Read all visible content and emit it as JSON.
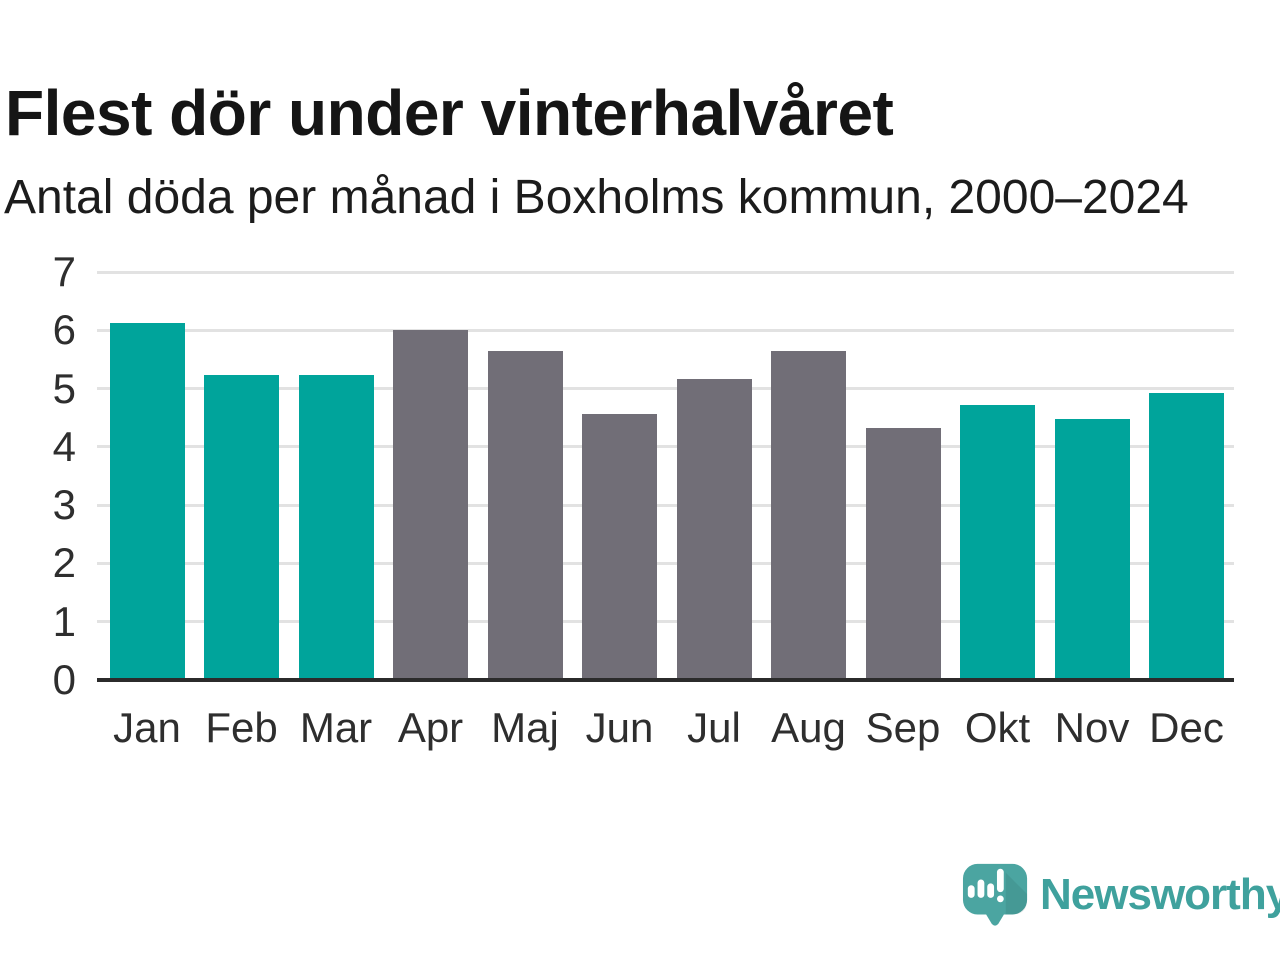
{
  "header": {
    "title": "Flest dör under vinterhalvåret",
    "subtitle": "Antal döda per månad i Boxholms kommun, 2000–2024"
  },
  "chart_data": {
    "type": "bar",
    "title": "Flest dör under vinterhalvåret",
    "subtitle": "Antal döda per månad i Boxholms kommun, 2000–2024",
    "categories": [
      "Jan",
      "Feb",
      "Mar",
      "Apr",
      "Maj",
      "Jun",
      "Jul",
      "Aug",
      "Sep",
      "Okt",
      "Nov",
      "Dec"
    ],
    "values": [
      6.12,
      5.24,
      5.24,
      6.0,
      5.64,
      4.56,
      5.16,
      5.64,
      4.32,
      4.72,
      4.48,
      4.92
    ],
    "highlighted": [
      true,
      true,
      true,
      false,
      false,
      false,
      false,
      false,
      false,
      true,
      true,
      true
    ],
    "xlabel": "",
    "ylabel": "",
    "ylim": [
      0,
      7
    ],
    "yticks": [
      0,
      1,
      2,
      3,
      4,
      5,
      6,
      7
    ],
    "grid": true,
    "legend": "none",
    "colors": {
      "highlight": "#00a49b",
      "muted": "#716e77",
      "gridline": "#e2e2e2",
      "axis": "#2b2b2b"
    }
  },
  "footer": {
    "brand": "Newsworthy",
    "logo_icon": "newsworthy-speech-bubble-bar-chart-icon",
    "logo_colors": {
      "bubble": "#4ba5a1",
      "text": "#3fa19d"
    }
  }
}
